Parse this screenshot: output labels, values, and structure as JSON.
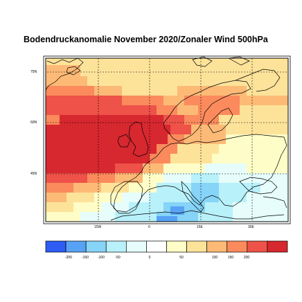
{
  "title": "Bodendruckanomalie November 2020/Zonaler Wind 500hPa",
  "lat_labels": [
    "75N",
    "60N",
    "45N"
  ],
  "lon_labels": [
    "15W",
    "0",
    "15E",
    "30E"
  ],
  "colorbar": {
    "labels": [
      "-200",
      "-150",
      "-100",
      "-50",
      "0",
      "50",
      "100",
      "150",
      "200"
    ],
    "colors": [
      "#2f5cf5",
      "#57a2f5",
      "#86d4f7",
      "#b9f1fb",
      "#e6fdfb",
      "#ffffff",
      "#fefdc7",
      "#fde39a",
      "#fdba76",
      "#fb8a5c",
      "#ee5248",
      "#d7272f"
    ]
  },
  "map_colors": {
    "strong_pos": "#d7272f",
    "pos": "#ee5248",
    "mid_pos": "#fb8a5c",
    "light_pos": "#fdba76",
    "weak_pos": "#fde39a",
    "very_weak_pos": "#fefdc7",
    "neutral": "#e6fdfb",
    "weak_neg": "#b9f1fb",
    "neg": "#86d4f7",
    "strong_neg": "#57a2f5"
  }
}
